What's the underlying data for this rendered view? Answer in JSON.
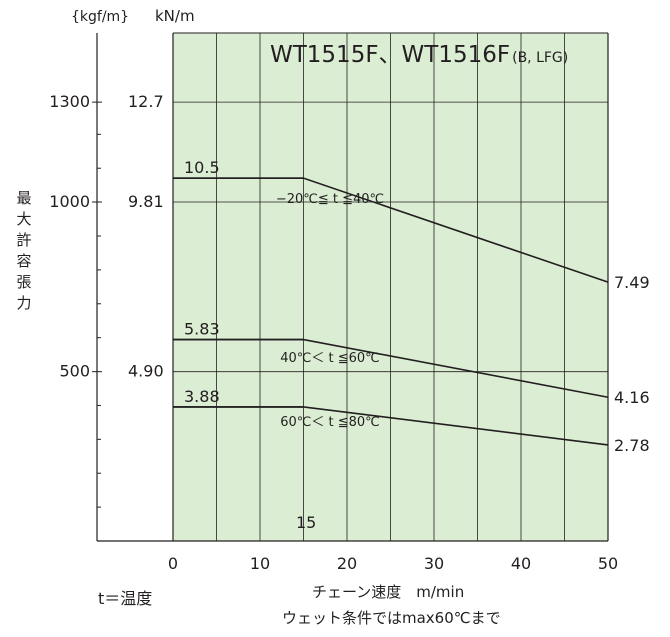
{
  "chart_data": {
    "type": "line",
    "title": "WT1515F、WT1516F",
    "title_suffix": "(B, LFG)",
    "xlabel": "チェーン速度　m/min",
    "xlim": [
      0,
      50
    ],
    "x_ticks": [
      0,
      10,
      20,
      30,
      40,
      50
    ],
    "y_unit_left": "{kgf/m}",
    "y_unit_right": "kN/m",
    "ylabel_chars": [
      "最",
      "大",
      "許",
      "容",
      "張",
      "力"
    ],
    "ylim_kN": [
      0,
      14.7
    ],
    "y_ticks_kgf": [
      {
        "value_kN": 12.7,
        "label": "1300"
      },
      {
        "value_kN": 9.81,
        "label": "1000"
      },
      {
        "value_kN": 4.9,
        "label": "500"
      }
    ],
    "y_ticks_kN": [
      {
        "value_kN": 12.7,
        "label": "12.7"
      },
      {
        "value_kN": 9.81,
        "label": "9.81"
      },
      {
        "value_kN": 4.9,
        "label": "4.90"
      }
    ],
    "y_minor_ticks_kgf": [
      1200,
      1100,
      900,
      800,
      700,
      600,
      400,
      300,
      200,
      100
    ],
    "grid": true,
    "background": "#dbeed3",
    "line_color": "#231f20",
    "series": [
      {
        "name": "−20℃≦ t ≦40℃",
        "x": [
          0,
          15,
          50
        ],
        "y": [
          10.5,
          10.5,
          7.49
        ],
        "start_label": "10.5",
        "end_label": "7.49"
      },
      {
        "name": "40℃＜ t ≦60℃",
        "x": [
          0,
          15,
          50
        ],
        "y": [
          5.83,
          5.83,
          4.16
        ],
        "start_label": "5.83",
        "end_label": "4.16"
      },
      {
        "name": "60℃＜ t ≦80℃",
        "x": [
          0,
          15,
          50
        ],
        "y": [
          3.88,
          3.88,
          2.78
        ],
        "start_label": "3.88",
        "end_label": "2.78"
      }
    ],
    "breakpoint_label": "15",
    "notes": [
      "t＝温度",
      "ウェット条件ではmax60℃まで"
    ]
  }
}
